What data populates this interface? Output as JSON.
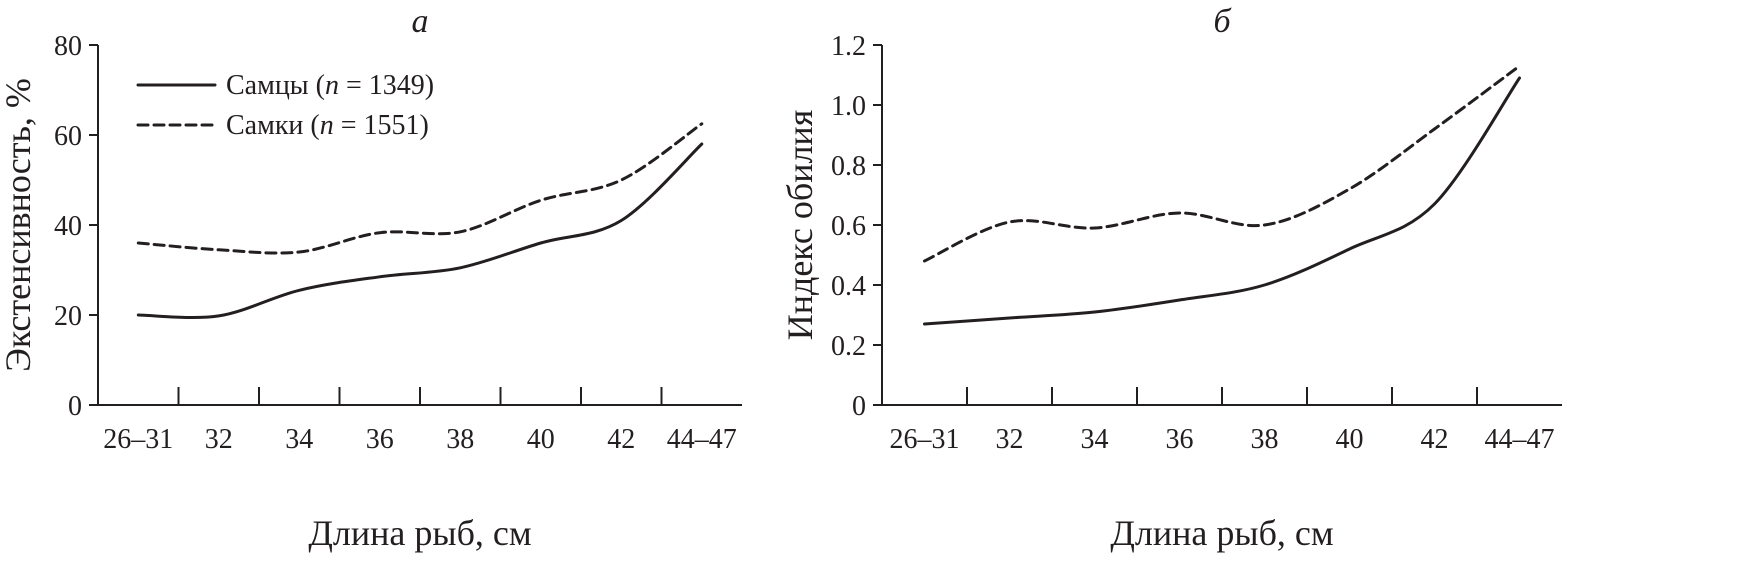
{
  "chart_data": [
    {
      "type": "line",
      "panel": "а",
      "categories": [
        "26–31",
        "32",
        "34",
        "36",
        "38",
        "40",
        "42",
        "44–47"
      ],
      "xlabel": "Длина рыб, см",
      "ylabel": "Экстенсивность, %",
      "ylim": [
        0,
        80
      ],
      "yticks": [
        "0",
        "20",
        "40",
        "60",
        "80"
      ],
      "grid": false,
      "legend": "top-left",
      "series": [
        {
          "name": "Самцы (n = 1349)",
          "label_prefix": "Самцы (",
          "label_n": "n",
          "label_suffix": " = 1349)",
          "style": "solid",
          "values": [
            20,
            19.8,
            25.5,
            28.5,
            30.5,
            36,
            41,
            58
          ]
        },
        {
          "name": "Самки (n = 1551)",
          "label_prefix": "Самки (",
          "label_n": "n",
          "label_suffix": " = 1551)",
          "style": "dashed",
          "values": [
            36,
            34.5,
            34,
            38.3,
            38.5,
            45.5,
            50,
            62.5
          ]
        }
      ]
    },
    {
      "type": "line",
      "panel": "б",
      "categories": [
        "26–31",
        "32",
        "34",
        "36",
        "38",
        "40",
        "42",
        "44–47"
      ],
      "xlabel": "Длина рыб, см",
      "ylabel": "Индекс обилия",
      "ylim": [
        0,
        1.2
      ],
      "yticks": [
        "0",
        "0.2",
        "0.4",
        "0.6",
        "0.8",
        "1.0",
        "1.2"
      ],
      "grid": false,
      "series": [
        {
          "style": "solid",
          "values": [
            0.27,
            0.29,
            0.31,
            0.35,
            0.4,
            0.52,
            0.67,
            1.09
          ]
        },
        {
          "style": "dashed",
          "values": [
            0.48,
            0.61,
            0.59,
            0.64,
            0.6,
            0.72,
            0.92,
            1.13
          ]
        }
      ]
    }
  ]
}
